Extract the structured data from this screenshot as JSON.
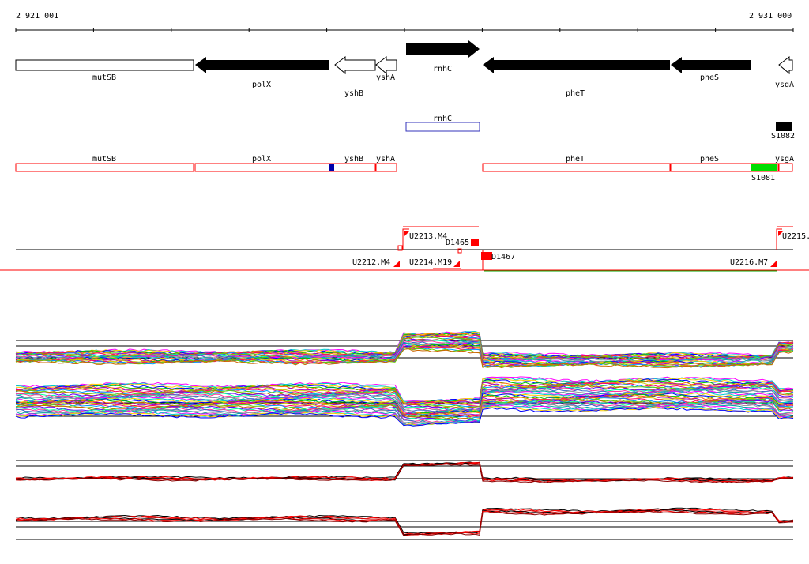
{
  "coords": {
    "start": "2 921 001",
    "end": "2 931 000"
  },
  "genes_top": [
    {
      "name": "mutSB",
      "style": "open-box"
    },
    {
      "name": "polX",
      "style": "filled-arrow-left"
    },
    {
      "name": "yshB",
      "style": "open-arrow-left"
    },
    {
      "name": "yshA",
      "style": "open-arrow-left"
    },
    {
      "name": "rnhC",
      "style": "filled-arrow-right"
    },
    {
      "name": "pheT",
      "style": "filled-arrow-left"
    },
    {
      "name": "pheS",
      "style": "filled-arrow-left"
    },
    {
      "name": "ysgA",
      "style": "open-arrow-left"
    }
  ],
  "rnhc_box_label": "rnhC",
  "s1082_label": "S1082",
  "s1081_label": "S1081",
  "genes_red": [
    {
      "name": "mutSB"
    },
    {
      "name": "polX"
    },
    {
      "name": "yshB"
    },
    {
      "name": "yshA"
    },
    {
      "name": "pheT"
    },
    {
      "name": "pheS"
    },
    {
      "name": "ysgA"
    }
  ],
  "segment_labels": {
    "u2213": "U2213.M4",
    "d1465": "D1465",
    "d1467": "D1467",
    "u2215": "U2215.",
    "u2212": "U2212.M4",
    "u2214": "U2214.M19",
    "u2216": "U2216.M7"
  },
  "colors": {
    "filled": "#000000",
    "red": "#ff0000",
    "blue": "#0000aa",
    "green": "#00dd00",
    "green_line": "#00aa00",
    "rnhc_box": "#3333bb"
  }
}
